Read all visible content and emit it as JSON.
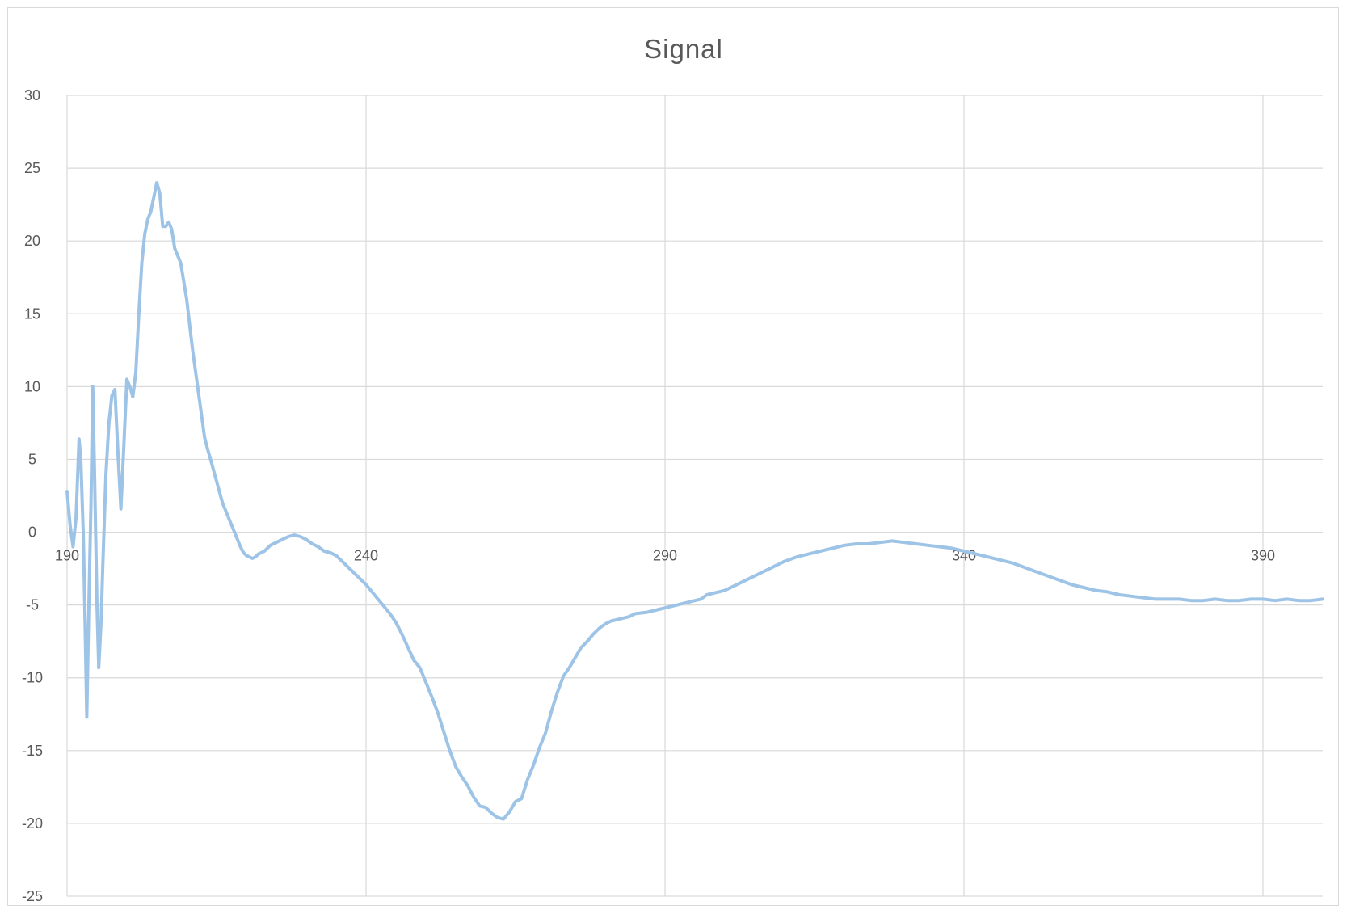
{
  "chart_data": {
    "type": "line",
    "title": "Signal",
    "xlabel": "",
    "ylabel": "",
    "xlim": [
      190,
      400
    ],
    "ylim": [
      -25,
      30
    ],
    "x_ticks": [
      190,
      240,
      290,
      340,
      390
    ],
    "y_ticks": [
      30,
      25,
      20,
      15,
      10,
      5,
      0,
      -5,
      -10,
      -15,
      -20,
      -25
    ],
    "x_tick_labels": [
      "190",
      "240",
      "290",
      "340",
      "390"
    ],
    "y_tick_labels": [
      "30",
      "25",
      "20",
      "15",
      "10",
      "5",
      "0",
      "-5",
      "-10",
      "-15",
      "-20",
      "-25"
    ],
    "grid": true,
    "legend": "none",
    "series_color": "#9dc3e6",
    "series": [
      {
        "values": [
          [
            190,
            2.8
          ],
          [
            190.5,
            0.5
          ],
          [
            191,
            -1.0
          ],
          [
            191.5,
            1.0
          ],
          [
            192,
            6.4
          ],
          [
            192.3,
            5.0
          ],
          [
            192.7,
            0
          ],
          [
            193,
            -6.0
          ],
          [
            193.3,
            -12.7
          ],
          [
            193.6,
            -6.0
          ],
          [
            194,
            2.0
          ],
          [
            194.3,
            10.0
          ],
          [
            194.6,
            4.0
          ],
          [
            195,
            -5.0
          ],
          [
            195.3,
            -9.3
          ],
          [
            195.7,
            -6.0
          ],
          [
            196,
            -2.0
          ],
          [
            196.5,
            4.0
          ],
          [
            197,
            7.5
          ],
          [
            197.5,
            9.4
          ],
          [
            198,
            9.8
          ],
          [
            198.5,
            5.5
          ],
          [
            199,
            1.6
          ],
          [
            199.5,
            6.0
          ],
          [
            200,
            10.5
          ],
          [
            200.5,
            10.0
          ],
          [
            201,
            9.3
          ],
          [
            201.5,
            11.0
          ],
          [
            202,
            15.0
          ],
          [
            202.5,
            18.5
          ],
          [
            203,
            20.5
          ],
          [
            203.5,
            21.5
          ],
          [
            204,
            22.0
          ],
          [
            204.5,
            23.0
          ],
          [
            205,
            24.0
          ],
          [
            205.5,
            23.3
          ],
          [
            206,
            21.0
          ],
          [
            206.5,
            21.0
          ],
          [
            207,
            21.3
          ],
          [
            207.5,
            20.8
          ],
          [
            208,
            19.5
          ],
          [
            209,
            18.5
          ],
          [
            210,
            16.0
          ],
          [
            211,
            12.5
          ],
          [
            212,
            9.5
          ],
          [
            213,
            6.5
          ],
          [
            213.5,
            5.7
          ],
          [
            214,
            5.0
          ],
          [
            215,
            3.5
          ],
          [
            216,
            2.0
          ],
          [
            217,
            1.0
          ],
          [
            218,
            0.0
          ],
          [
            219,
            -1.0
          ],
          [
            219.5,
            -1.4
          ],
          [
            220,
            -1.6
          ],
          [
            220.5,
            -1.7
          ],
          [
            221,
            -1.8
          ],
          [
            221.5,
            -1.7
          ],
          [
            222,
            -1.5
          ],
          [
            222.5,
            -1.4
          ],
          [
            223,
            -1.3
          ],
          [
            224,
            -0.9
          ],
          [
            225,
            -0.7
          ],
          [
            226,
            -0.5
          ],
          [
            227,
            -0.3
          ],
          [
            228,
            -0.2
          ],
          [
            229,
            -0.3
          ],
          [
            230,
            -0.5
          ],
          [
            231,
            -0.8
          ],
          [
            232,
            -1.0
          ],
          [
            233,
            -1.3
          ],
          [
            234,
            -1.4
          ],
          [
            235,
            -1.6
          ],
          [
            236,
            -2.0
          ],
          [
            237,
            -2.4
          ],
          [
            238,
            -2.8
          ],
          [
            239,
            -3.2
          ],
          [
            240,
            -3.6
          ],
          [
            241,
            -4.1
          ],
          [
            242,
            -4.6
          ],
          [
            243,
            -5.1
          ],
          [
            244,
            -5.6
          ],
          [
            245,
            -6.2
          ],
          [
            246,
            -7.0
          ],
          [
            247,
            -7.9
          ],
          [
            248,
            -8.8
          ],
          [
            249,
            -9.3
          ],
          [
            250,
            -10.3
          ],
          [
            251,
            -11.3
          ],
          [
            252,
            -12.4
          ],
          [
            253,
            -13.7
          ],
          [
            254,
            -15.0
          ],
          [
            255,
            -16.1
          ],
          [
            256,
            -16.8
          ],
          [
            257,
            -17.4
          ],
          [
            258,
            -18.2
          ],
          [
            259,
            -18.8
          ],
          [
            260,
            -18.9
          ],
          [
            261,
            -19.3
          ],
          [
            262,
            -19.6
          ],
          [
            263,
            -19.7
          ],
          [
            264,
            -19.2
          ],
          [
            265,
            -18.5
          ],
          [
            266,
            -18.3
          ],
          [
            267,
            -17.0
          ],
          [
            268,
            -16.0
          ],
          [
            269,
            -14.8
          ],
          [
            270,
            -13.8
          ],
          [
            271,
            -12.3
          ],
          [
            272,
            -11.0
          ],
          [
            273,
            -9.9
          ],
          [
            274,
            -9.3
          ],
          [
            275,
            -8.6
          ],
          [
            276,
            -7.9
          ],
          [
            277,
            -7.5
          ],
          [
            278,
            -7.0
          ],
          [
            279,
            -6.6
          ],
          [
            280,
            -6.3
          ],
          [
            281,
            -6.1
          ],
          [
            282,
            -6.0
          ],
          [
            283,
            -5.9
          ],
          [
            284,
            -5.8
          ],
          [
            285,
            -5.6
          ],
          [
            287,
            -5.5
          ],
          [
            289,
            -5.3
          ],
          [
            291,
            -5.1
          ],
          [
            293,
            -4.9
          ],
          [
            295,
            -4.7
          ],
          [
            296,
            -4.6
          ],
          [
            297,
            -4.3
          ],
          [
            298,
            -4.2
          ],
          [
            300,
            -4.0
          ],
          [
            302,
            -3.6
          ],
          [
            304,
            -3.2
          ],
          [
            306,
            -2.8
          ],
          [
            308,
            -2.4
          ],
          [
            310,
            -2.0
          ],
          [
            312,
            -1.7
          ],
          [
            314,
            -1.5
          ],
          [
            316,
            -1.3
          ],
          [
            318,
            -1.1
          ],
          [
            320,
            -0.9
          ],
          [
            322,
            -0.8
          ],
          [
            324,
            -0.8
          ],
          [
            326,
            -0.7
          ],
          [
            328,
            -0.6
          ],
          [
            330,
            -0.7
          ],
          [
            332,
            -0.8
          ],
          [
            334,
            -0.9
          ],
          [
            336,
            -1.0
          ],
          [
            338,
            -1.1
          ],
          [
            340,
            -1.3
          ],
          [
            342,
            -1.5
          ],
          [
            344,
            -1.7
          ],
          [
            346,
            -1.9
          ],
          [
            348,
            -2.1
          ],
          [
            350,
            -2.4
          ],
          [
            352,
            -2.7
          ],
          [
            354,
            -3.0
          ],
          [
            356,
            -3.3
          ],
          [
            358,
            -3.6
          ],
          [
            360,
            -3.8
          ],
          [
            362,
            -4.0
          ],
          [
            364,
            -4.1
          ],
          [
            366,
            -4.3
          ],
          [
            368,
            -4.4
          ],
          [
            370,
            -4.5
          ],
          [
            372,
            -4.6
          ],
          [
            374,
            -4.6
          ],
          [
            376,
            -4.6
          ],
          [
            378,
            -4.7
          ],
          [
            380,
            -4.7
          ],
          [
            382,
            -4.6
          ],
          [
            384,
            -4.7
          ],
          [
            386,
            -4.7
          ],
          [
            388,
            -4.6
          ],
          [
            390,
            -4.6
          ],
          [
            392,
            -4.7
          ],
          [
            394,
            -4.6
          ],
          [
            396,
            -4.7
          ],
          [
            398,
            -4.7
          ],
          [
            400,
            -4.6
          ]
        ]
      }
    ]
  }
}
